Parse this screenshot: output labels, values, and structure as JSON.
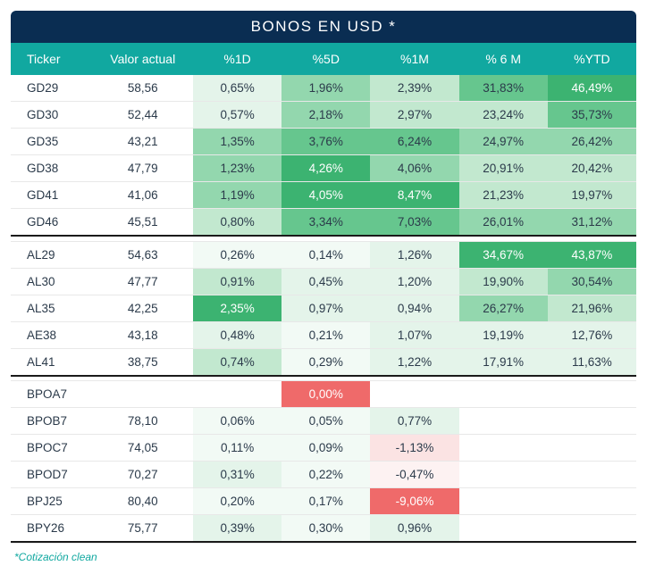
{
  "title": "BONOS EN USD *",
  "footnote": "*Cotización clean",
  "columns": [
    "Ticker",
    "Valor actual",
    "%1D",
    "%5D",
    "%1M",
    "% 6 M",
    "%YTD"
  ],
  "colors": {
    "title_bg": "#0a2d52",
    "header_bg": "#11a8a0",
    "text": "#2b3a4a",
    "heat_green_5": "#3cb371",
    "heat_green_4": "#66c68e",
    "heat_green_3": "#93d7ae",
    "heat_green_2": "#c2e8cf",
    "heat_green_1": "#e4f4ea",
    "heat_green_0": "#f2faf5",
    "heat_red_3": "#ef6a6a",
    "heat_red_2": "#f4a5a5",
    "heat_red_1": "#fbe3e3",
    "heat_red_0": "#fdf2f2",
    "blank": "#ffffff"
  },
  "groups": [
    {
      "rows": [
        {
          "ticker": "GD29",
          "valor": "58,56",
          "d1": {
            "v": "0,65%",
            "c": "heat_green_1"
          },
          "d5": {
            "v": "1,96%",
            "c": "heat_green_3"
          },
          "m1": {
            "v": "2,39%",
            "c": "heat_green_2"
          },
          "m6": {
            "v": "31,83%",
            "c": "heat_green_4"
          },
          "ytd": {
            "v": "46,49%",
            "c": "heat_green_5"
          }
        },
        {
          "ticker": "GD30",
          "valor": "52,44",
          "d1": {
            "v": "0,57%",
            "c": "heat_green_1"
          },
          "d5": {
            "v": "2,18%",
            "c": "heat_green_3"
          },
          "m1": {
            "v": "2,97%",
            "c": "heat_green_2"
          },
          "m6": {
            "v": "23,24%",
            "c": "heat_green_2"
          },
          "ytd": {
            "v": "35,73%",
            "c": "heat_green_4"
          }
        },
        {
          "ticker": "GD35",
          "valor": "43,21",
          "d1": {
            "v": "1,35%",
            "c": "heat_green_3"
          },
          "d5": {
            "v": "3,76%",
            "c": "heat_green_4"
          },
          "m1": {
            "v": "6,24%",
            "c": "heat_green_4"
          },
          "m6": {
            "v": "24,97%",
            "c": "heat_green_3"
          },
          "ytd": {
            "v": "26,42%",
            "c": "heat_green_3"
          }
        },
        {
          "ticker": "GD38",
          "valor": "47,79",
          "d1": {
            "v": "1,23%",
            "c": "heat_green_3"
          },
          "d5": {
            "v": "4,26%",
            "c": "heat_green_5"
          },
          "m1": {
            "v": "4,06%",
            "c": "heat_green_3"
          },
          "m6": {
            "v": "20,91%",
            "c": "heat_green_2"
          },
          "ytd": {
            "v": "20,42%",
            "c": "heat_green_2"
          }
        },
        {
          "ticker": "GD41",
          "valor": "41,06",
          "d1": {
            "v": "1,19%",
            "c": "heat_green_3"
          },
          "d5": {
            "v": "4,05%",
            "c": "heat_green_5"
          },
          "m1": {
            "v": "8,47%",
            "c": "heat_green_5"
          },
          "m6": {
            "v": "21,23%",
            "c": "heat_green_2"
          },
          "ytd": {
            "v": "19,97%",
            "c": "heat_green_2"
          }
        },
        {
          "ticker": "GD46",
          "valor": "45,51",
          "d1": {
            "v": "0,80%",
            "c": "heat_green_2"
          },
          "d5": {
            "v": "3,34%",
            "c": "heat_green_4"
          },
          "m1": {
            "v": "7,03%",
            "c": "heat_green_4"
          },
          "m6": {
            "v": "26,01%",
            "c": "heat_green_3"
          },
          "ytd": {
            "v": "31,12%",
            "c": "heat_green_3"
          }
        }
      ]
    },
    {
      "rows": [
        {
          "ticker": "AL29",
          "valor": "54,63",
          "d1": {
            "v": "0,26%",
            "c": "heat_green_0"
          },
          "d5": {
            "v": "0,14%",
            "c": "heat_green_0"
          },
          "m1": {
            "v": "1,26%",
            "c": "heat_green_1"
          },
          "m6": {
            "v": "34,67%",
            "c": "heat_green_5"
          },
          "ytd": {
            "v": "43,87%",
            "c": "heat_green_5"
          }
        },
        {
          "ticker": "AL30",
          "valor": "47,77",
          "d1": {
            "v": "0,91%",
            "c": "heat_green_2"
          },
          "d5": {
            "v": "0,45%",
            "c": "heat_green_1"
          },
          "m1": {
            "v": "1,20%",
            "c": "heat_green_1"
          },
          "m6": {
            "v": "19,90%",
            "c": "heat_green_2"
          },
          "ytd": {
            "v": "30,54%",
            "c": "heat_green_3"
          }
        },
        {
          "ticker": "AL35",
          "valor": "42,25",
          "d1": {
            "v": "2,35%",
            "c": "heat_green_5"
          },
          "d5": {
            "v": "0,97%",
            "c": "heat_green_1"
          },
          "m1": {
            "v": "0,94%",
            "c": "heat_green_1"
          },
          "m6": {
            "v": "26,27%",
            "c": "heat_green_3"
          },
          "ytd": {
            "v": "21,96%",
            "c": "heat_green_2"
          }
        },
        {
          "ticker": "AE38",
          "valor": "43,18",
          "d1": {
            "v": "0,48%",
            "c": "heat_green_1"
          },
          "d5": {
            "v": "0,21%",
            "c": "heat_green_0"
          },
          "m1": {
            "v": "1,07%",
            "c": "heat_green_1"
          },
          "m6": {
            "v": "19,19%",
            "c": "heat_green_1"
          },
          "ytd": {
            "v": "12,76%",
            "c": "heat_green_1"
          }
        },
        {
          "ticker": "AL41",
          "valor": "38,75",
          "d1": {
            "v": "0,74%",
            "c": "heat_green_2"
          },
          "d5": {
            "v": "0,29%",
            "c": "heat_green_0"
          },
          "m1": {
            "v": "1,22%",
            "c": "heat_green_1"
          },
          "m6": {
            "v": "17,91%",
            "c": "heat_green_1"
          },
          "ytd": {
            "v": "11,63%",
            "c": "heat_green_1"
          }
        }
      ]
    },
    {
      "rows": [
        {
          "ticker": "BPOA7",
          "valor": "",
          "d1": {
            "v": "",
            "c": "blank"
          },
          "d5": {
            "v": "0,00%",
            "c": "heat_red_3"
          },
          "m1": {
            "v": "",
            "c": "blank"
          },
          "m6": {
            "v": "",
            "c": "blank"
          },
          "ytd": {
            "v": "",
            "c": "blank"
          }
        },
        {
          "ticker": "BPOB7",
          "valor": "78,10",
          "d1": {
            "v": "0,06%",
            "c": "heat_green_0"
          },
          "d5": {
            "v": "0,05%",
            "c": "heat_green_0"
          },
          "m1": {
            "v": "0,77%",
            "c": "heat_green_1"
          },
          "m6": {
            "v": "",
            "c": "blank"
          },
          "ytd": {
            "v": "",
            "c": "blank"
          }
        },
        {
          "ticker": "BPOC7",
          "valor": "74,05",
          "d1": {
            "v": "0,11%",
            "c": "heat_green_0"
          },
          "d5": {
            "v": "0,09%",
            "c": "heat_green_0"
          },
          "m1": {
            "v": "-1,13%",
            "c": "heat_red_1"
          },
          "m6": {
            "v": "",
            "c": "blank"
          },
          "ytd": {
            "v": "",
            "c": "blank"
          }
        },
        {
          "ticker": "BPOD7",
          "valor": "70,27",
          "d1": {
            "v": "0,31%",
            "c": "heat_green_1"
          },
          "d5": {
            "v": "0,22%",
            "c": "heat_green_0"
          },
          "m1": {
            "v": "-0,47%",
            "c": "heat_red_0"
          },
          "m6": {
            "v": "",
            "c": "blank"
          },
          "ytd": {
            "v": "",
            "c": "blank"
          }
        },
        {
          "ticker": "BPJ25",
          "valor": "80,40",
          "d1": {
            "v": "0,20%",
            "c": "heat_green_0"
          },
          "d5": {
            "v": "0,17%",
            "c": "heat_green_0"
          },
          "m1": {
            "v": "-9,06%",
            "c": "heat_red_3"
          },
          "m6": {
            "v": "",
            "c": "blank"
          },
          "ytd": {
            "v": "",
            "c": "blank"
          }
        },
        {
          "ticker": "BPY26",
          "valor": "75,77",
          "d1": {
            "v": "0,39%",
            "c": "heat_green_1"
          },
          "d5": {
            "v": "0,30%",
            "c": "heat_green_0"
          },
          "m1": {
            "v": "0,96%",
            "c": "heat_green_1"
          },
          "m6": {
            "v": "",
            "c": "blank"
          },
          "ytd": {
            "v": "",
            "c": "blank"
          }
        }
      ]
    }
  ]
}
